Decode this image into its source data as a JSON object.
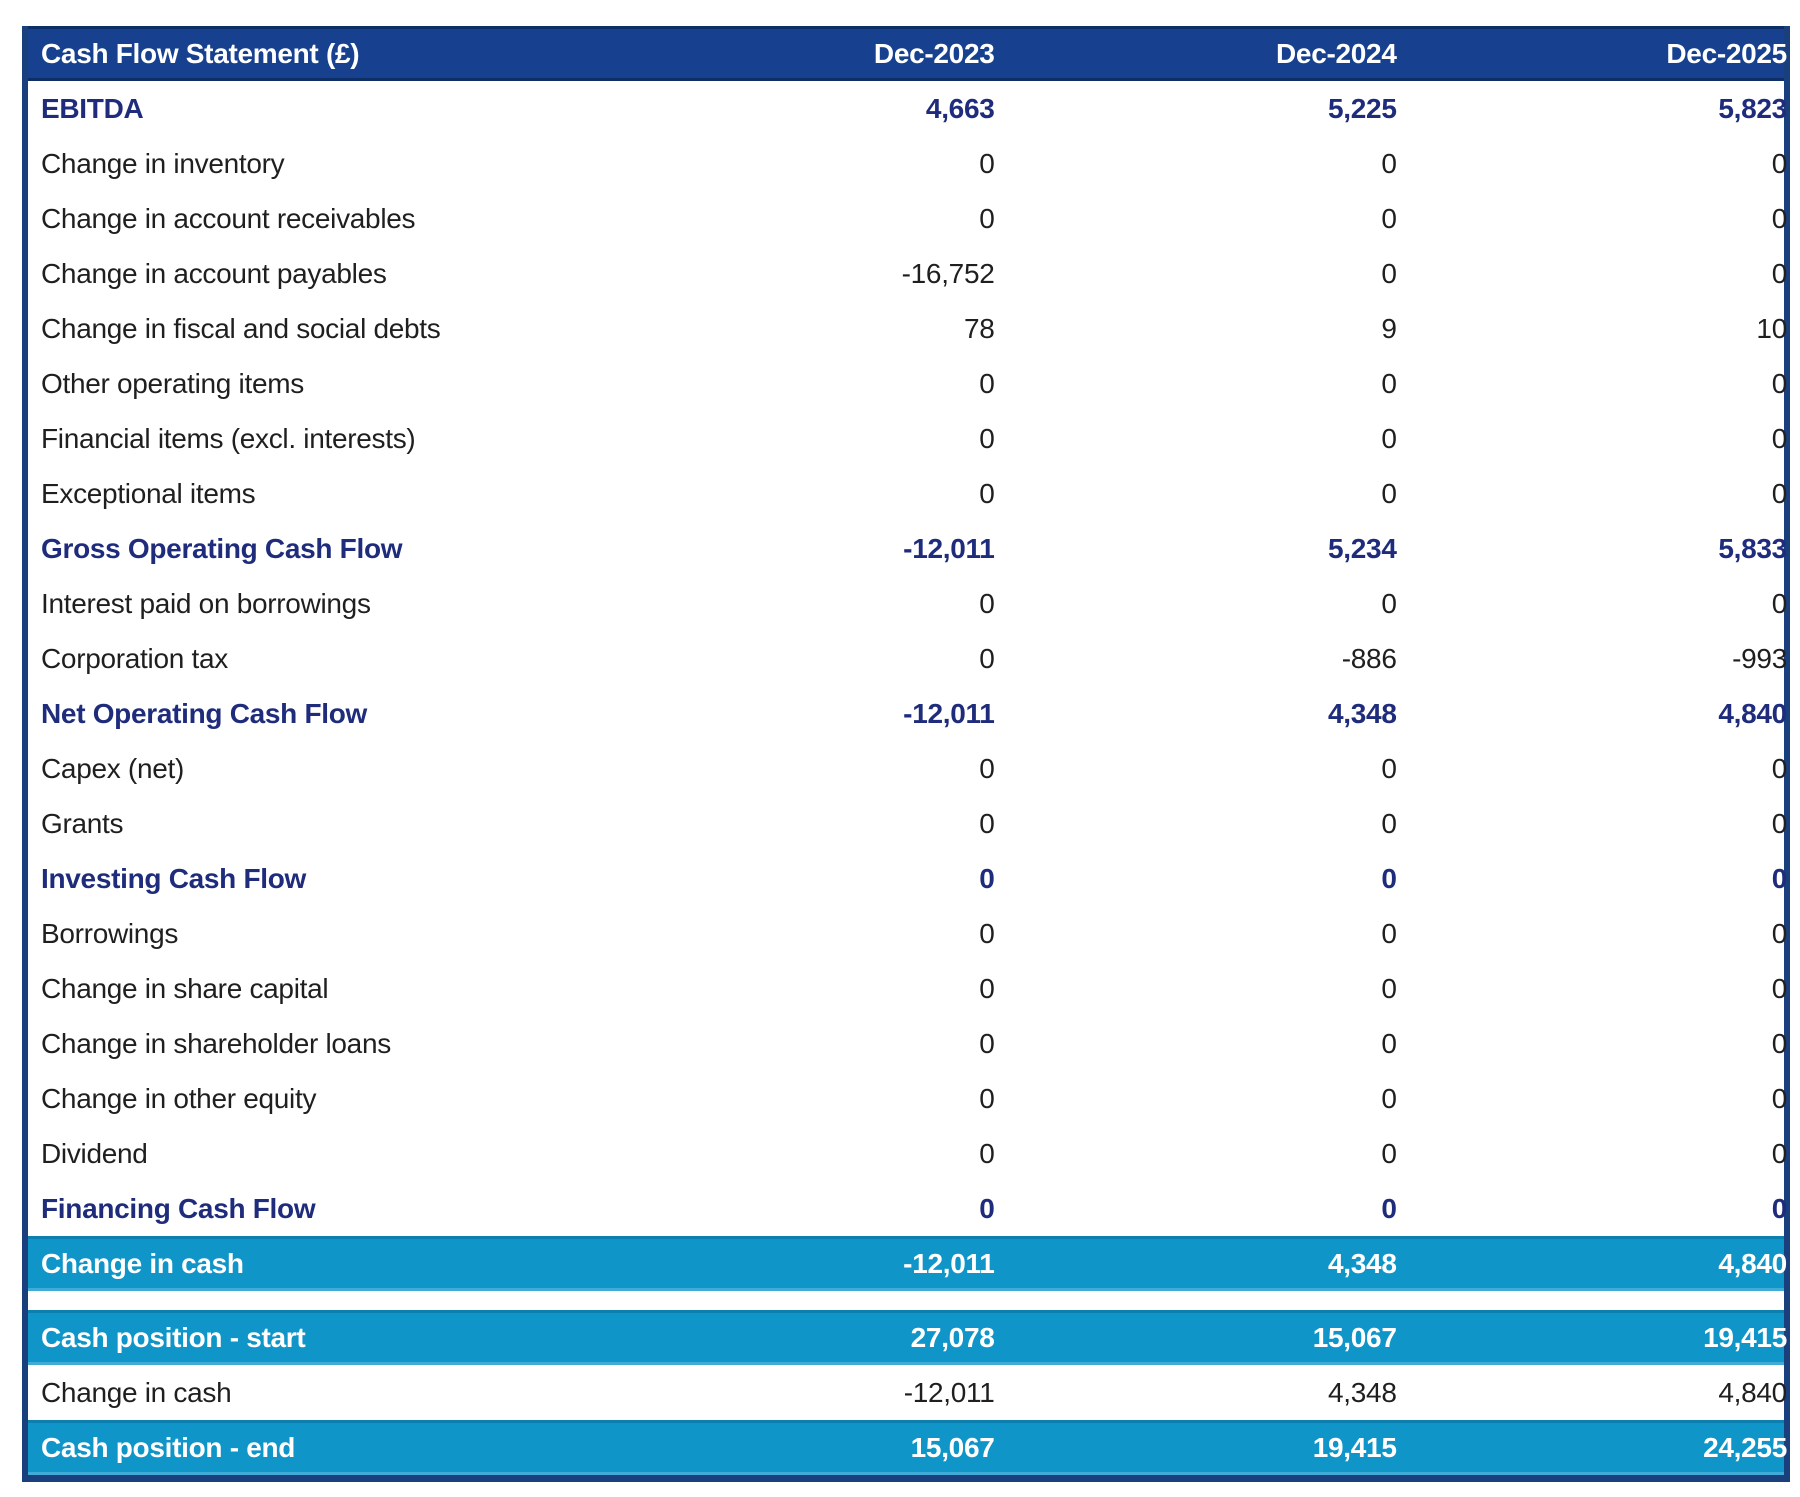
{
  "colors": {
    "header_bg": "#17418f",
    "header_text": "#ffffff",
    "bold_row_text": "#1f2c7c",
    "normal_row_text": "#1f1f1f",
    "highlight_bg": "#1095c8",
    "highlight_text": "#ffffff",
    "table_border": "#1a3f7d"
  },
  "chart_data": {
    "type": "table",
    "title": "Cash Flow Statement (£)",
    "columns": [
      "Dec-2023",
      "Dec-2024",
      "Dec-2025"
    ],
    "rows": [
      {
        "label": "EBITDA",
        "values": [
          "4,663",
          "5,225",
          "5,823"
        ],
        "style": "bold"
      },
      {
        "label": "Change in inventory",
        "values": [
          "0",
          "0",
          "0"
        ],
        "style": "normal"
      },
      {
        "label": "Change in account receivables",
        "values": [
          "0",
          "0",
          "0"
        ],
        "style": "normal"
      },
      {
        "label": "Change in account payables",
        "values": [
          "-16,752",
          "0",
          "0"
        ],
        "style": "normal"
      },
      {
        "label": "Change in fiscal and social debts",
        "values": [
          "78",
          "9",
          "10"
        ],
        "style": "normal"
      },
      {
        "label": "Other operating items",
        "values": [
          "0",
          "0",
          "0"
        ],
        "style": "normal"
      },
      {
        "label": "Financial items (excl. interests)",
        "values": [
          "0",
          "0",
          "0"
        ],
        "style": "normal"
      },
      {
        "label": "Exceptional items",
        "values": [
          "0",
          "0",
          "0"
        ],
        "style": "normal"
      },
      {
        "label": "Gross Operating Cash Flow",
        "values": [
          "-12,011",
          "5,234",
          "5,833"
        ],
        "style": "bold"
      },
      {
        "label": "Interest paid on borrowings",
        "values": [
          "0",
          "0",
          "0"
        ],
        "style": "normal"
      },
      {
        "label": "Corporation tax",
        "values": [
          "0",
          "-886",
          "-993"
        ],
        "style": "normal"
      },
      {
        "label": "Net Operating Cash Flow",
        "values": [
          "-12,011",
          "4,348",
          "4,840"
        ],
        "style": "bold"
      },
      {
        "label": "Capex (net)",
        "values": [
          "0",
          "0",
          "0"
        ],
        "style": "normal"
      },
      {
        "label": "Grants",
        "values": [
          "0",
          "0",
          "0"
        ],
        "style": "normal"
      },
      {
        "label": "Investing Cash Flow",
        "values": [
          "0",
          "0",
          "0"
        ],
        "style": "bold"
      },
      {
        "label": "Borrowings",
        "values": [
          "0",
          "0",
          "0"
        ],
        "style": "normal"
      },
      {
        "label": "Change in share capital",
        "values": [
          "0",
          "0",
          "0"
        ],
        "style": "normal"
      },
      {
        "label": "Change in shareholder loans",
        "values": [
          "0",
          "0",
          "0"
        ],
        "style": "normal"
      },
      {
        "label": "Change in other equity",
        "values": [
          "0",
          "0",
          "0"
        ],
        "style": "normal"
      },
      {
        "label": "Dividend",
        "values": [
          "0",
          "0",
          "0"
        ],
        "style": "normal"
      },
      {
        "label": "Financing Cash Flow",
        "values": [
          "0",
          "0",
          "0"
        ],
        "style": "bold"
      },
      {
        "label": "Change in cash",
        "values": [
          "-12,011",
          "4,348",
          "4,840"
        ],
        "style": "highlight"
      },
      {
        "style": "spacer"
      },
      {
        "label": "Cash position - start",
        "values": [
          "27,078",
          "15,067",
          "19,415"
        ],
        "style": "highlight"
      },
      {
        "label": "Change in cash",
        "values": [
          "-12,011",
          "4,348",
          "4,840"
        ],
        "style": "normal"
      },
      {
        "label": "Cash position - end",
        "values": [
          "15,067",
          "19,415",
          "24,255"
        ],
        "style": "highlight"
      }
    ]
  }
}
